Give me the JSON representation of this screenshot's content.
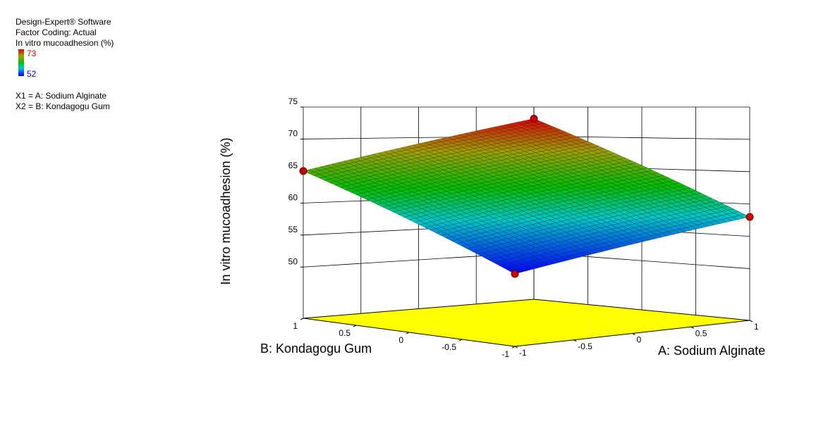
{
  "header": {
    "software": "Design-Expert® Software",
    "coding": "Factor Coding: Actual",
    "response": "In vitro mucoadhesion (%)",
    "color_max": 73,
    "color_min": 52,
    "x1": "X1 = A: Sodium Alginate",
    "x2": "X2 = B: Kondagogu Gum"
  },
  "chart_data": {
    "type": "surface3d",
    "xlabel": "A: Sodium Alginate",
    "ylabel": "B: Kondagogu Gum",
    "zlabel": "In vitro mucoadhesion (%)",
    "x": [
      -1,
      1,
      1,
      -1
    ],
    "y": [
      1,
      1,
      -1,
      -1
    ],
    "z": [
      65,
      73,
      58,
      52
    ],
    "xlim": [
      -1,
      1
    ],
    "ylim": [
      -1,
      1
    ],
    "zlim": [
      42,
      75
    ],
    "xticks": [
      -1,
      -0.5,
      0,
      0.5,
      1
    ],
    "yticks": [
      -1,
      -0.5,
      0,
      0.5,
      1
    ],
    "zticks": [
      50,
      55,
      60,
      65,
      70,
      75
    ],
    "floor_color": "#ffff00",
    "point_color": "#cc0000",
    "grid": true
  }
}
